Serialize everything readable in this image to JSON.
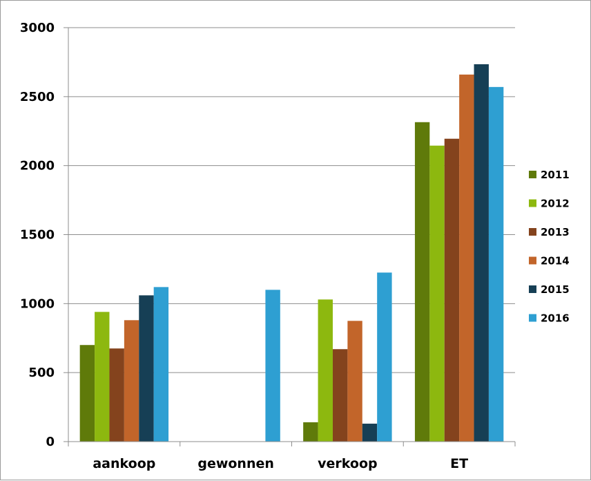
{
  "chart_data": {
    "type": "bar",
    "title": "",
    "xlabel": "",
    "ylabel": "",
    "categories": [
      "aankoop",
      "gewonnen",
      "verkoop",
      "ET"
    ],
    "ylim": [
      0,
      3000
    ],
    "yticks": [
      0,
      500,
      1000,
      1500,
      2000,
      2500,
      3000
    ],
    "grid": true,
    "legend_position": "right",
    "series": [
      {
        "name": "2011",
        "color": "#5f7a0a",
        "values": [
          700,
          0,
          140,
          2315
        ]
      },
      {
        "name": "2012",
        "color": "#8db80f",
        "values": [
          940,
          0,
          1030,
          2145
        ]
      },
      {
        "name": "2013",
        "color": "#84431d",
        "values": [
          675,
          0,
          670,
          2195
        ]
      },
      {
        "name": "2014",
        "color": "#c2652a",
        "values": [
          880,
          0,
          875,
          2660
        ]
      },
      {
        "name": "2015",
        "color": "#163f55",
        "values": [
          1060,
          0,
          130,
          2735
        ]
      },
      {
        "name": "2016",
        "color": "#2e9fd2",
        "values": [
          1120,
          1100,
          1225,
          2570
        ]
      }
    ]
  }
}
